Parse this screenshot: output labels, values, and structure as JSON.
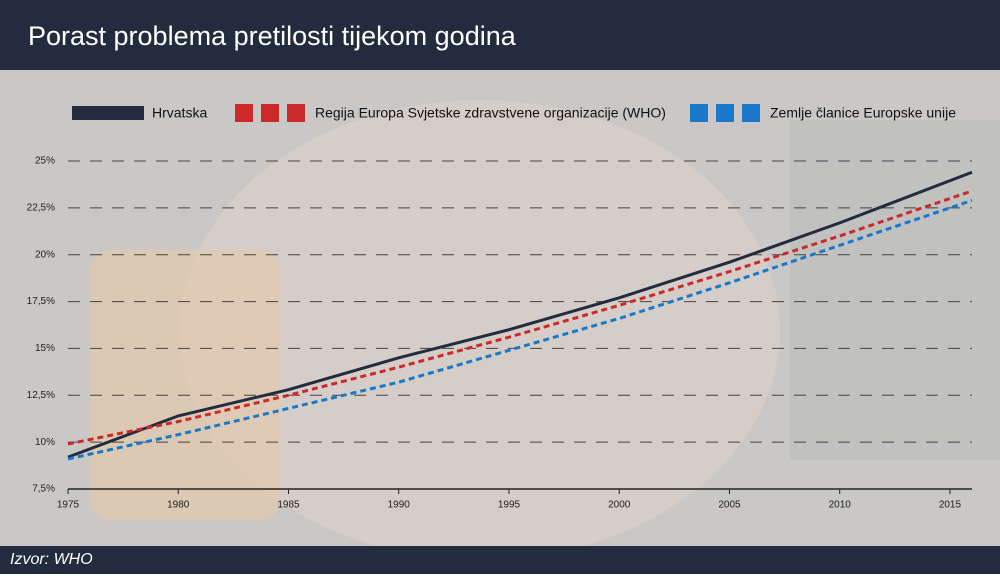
{
  "chart_data": {
    "type": "line",
    "title": "Porast problema pretilosti tijekom godina",
    "source": "Izvor: WHO",
    "x": [
      1975,
      1980,
      1985,
      1990,
      1995,
      2000,
      2005,
      2010,
      2016
    ],
    "series": [
      {
        "name": "Hrvatska",
        "color": "#232b3e",
        "dashed": false,
        "values": [
          9.2,
          11.4,
          12.8,
          14.5,
          16.0,
          17.7,
          19.6,
          21.7,
          24.4
        ]
      },
      {
        "name": "Regija Europa Svjetske zdravstvene organizacije (WHO)",
        "color": "#cc2a2a",
        "dashed": true,
        "values": [
          9.9,
          11.1,
          12.5,
          14.0,
          15.6,
          17.3,
          19.1,
          21.0,
          23.4
        ]
      },
      {
        "name": "Zemlje članice Europske unije",
        "color": "#1a78c8",
        "dashed": true,
        "values": [
          9.1,
          10.4,
          11.8,
          13.2,
          14.9,
          16.6,
          18.5,
          20.5,
          22.9
        ]
      }
    ],
    "xlim": [
      1975,
      2016
    ],
    "xticks": [
      1975,
      1980,
      1985,
      1990,
      1995,
      2000,
      2005,
      2010,
      2015
    ],
    "ylim": [
      7.5,
      25
    ],
    "yticks": [
      {
        "value": 7.5,
        "label": "7,5%"
      },
      {
        "value": 10,
        "label": "10%"
      },
      {
        "value": 12.5,
        "label": "12,5%"
      },
      {
        "value": 15,
        "label": "15%"
      },
      {
        "value": 17.5,
        "label": "17,5%"
      },
      {
        "value": 20,
        "label": "20%"
      },
      {
        "value": 22.5,
        "label": "22,5%"
      },
      {
        "value": 25,
        "label": "25%"
      }
    ],
    "grid": true
  }
}
